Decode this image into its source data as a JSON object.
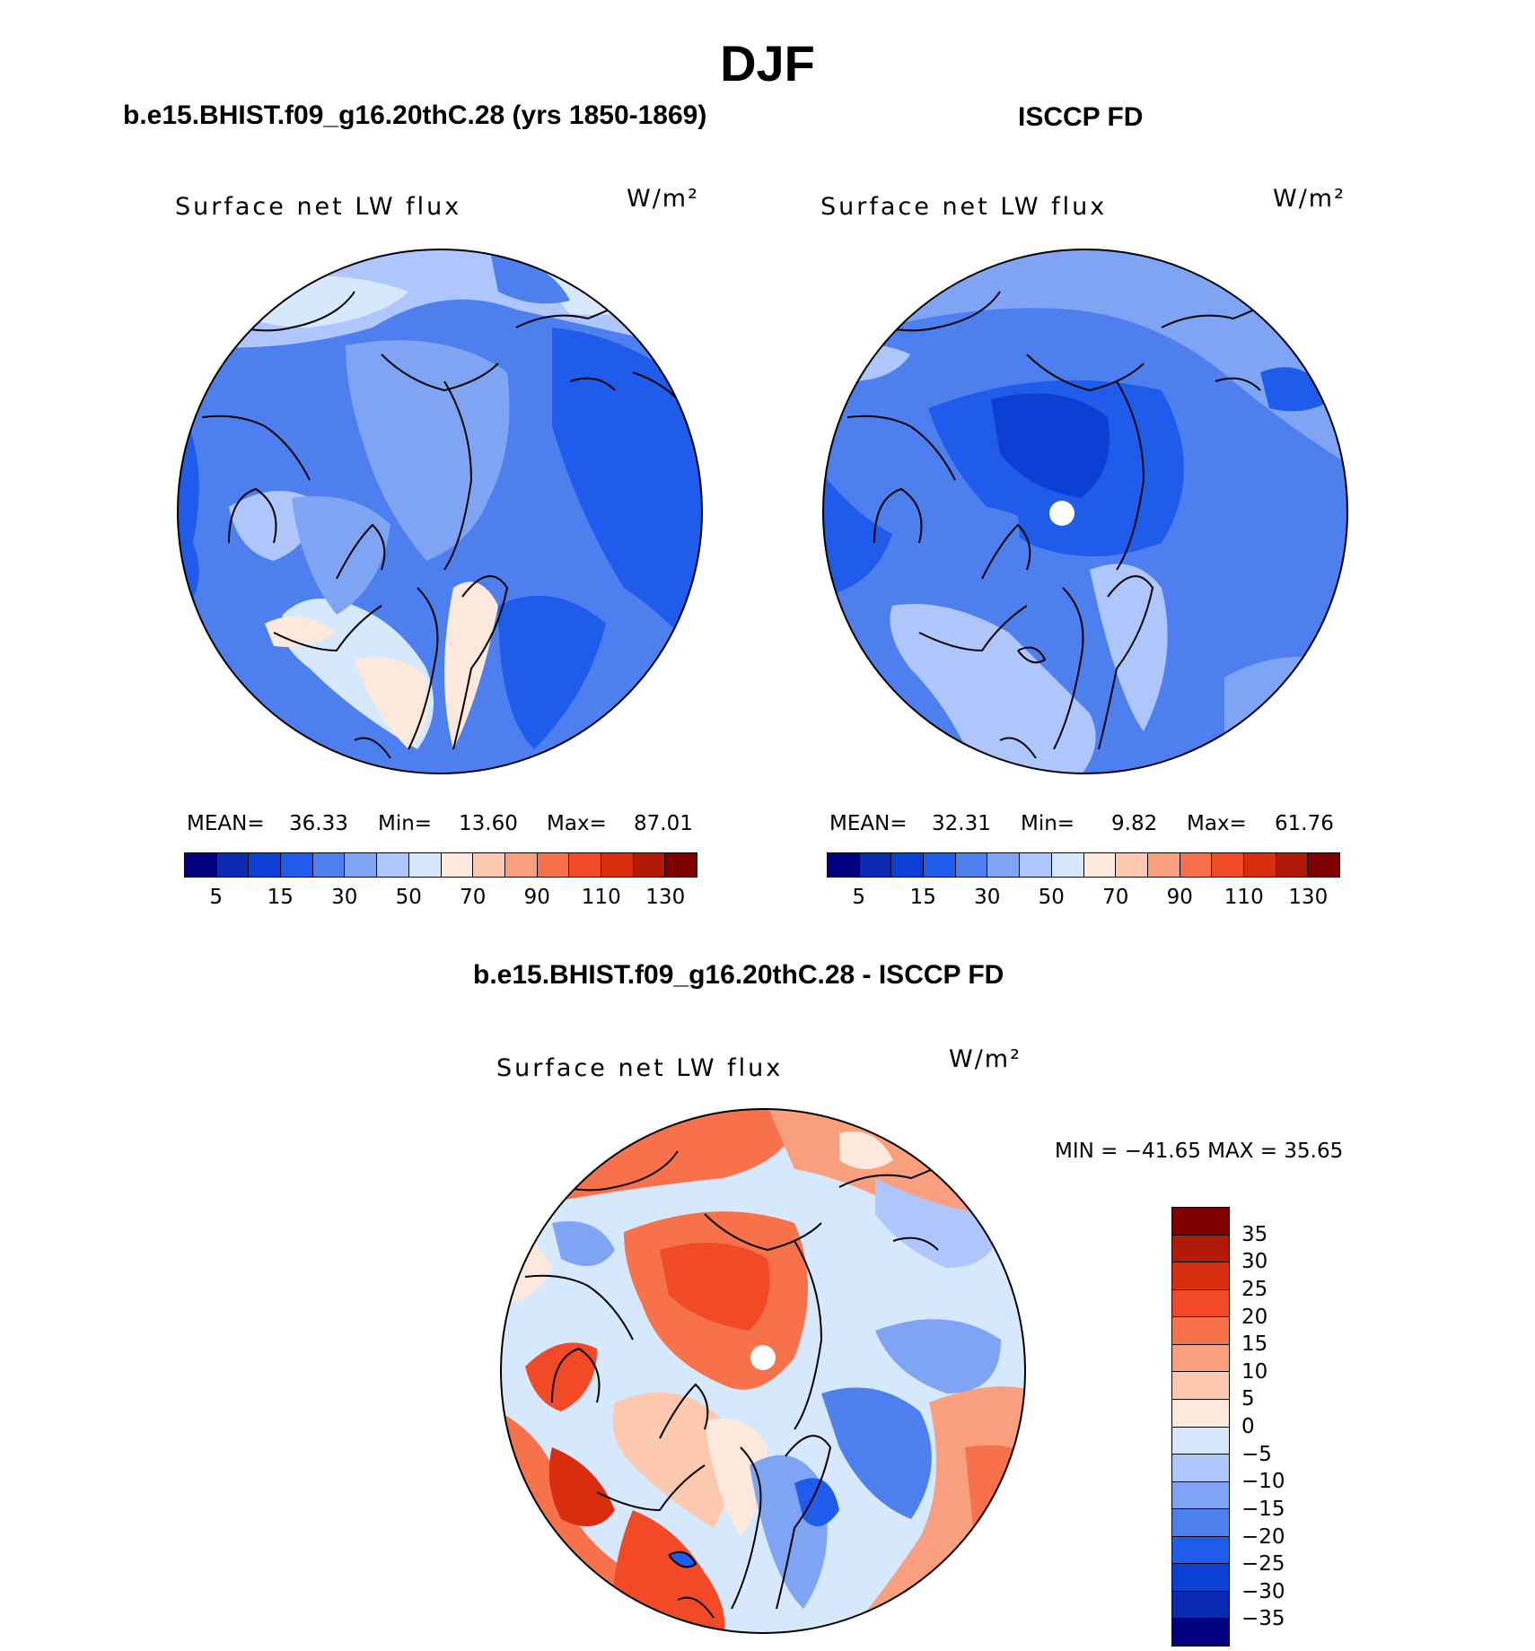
{
  "title": "DJF",
  "colors": {
    "abs_scale": [
      "#000080",
      "#0a2bb2",
      "#0c3fd4",
      "#1f5cec",
      "#4d7fef",
      "#7fa4f4",
      "#aec6fb",
      "#d6e8fc",
      "#fde8dc",
      "#fcc9ae",
      "#fa9f7e",
      "#f7714a",
      "#f24a26",
      "#d92d10",
      "#b21a08",
      "#800000"
    ],
    "diff_scale": [
      "#000080",
      "#0a2bb2",
      "#0c3fd4",
      "#1f5cec",
      "#4d7fef",
      "#7fa4f4",
      "#aec6fb",
      "#d6e8fc",
      "#fde8dc",
      "#fcc9ae",
      "#fa9f7e",
      "#f7714a",
      "#f24a26",
      "#d92d10",
      "#b21a08",
      "#800000"
    ]
  },
  "panels": {
    "model": {
      "title": "b.e15.BHIST.f09_g16.20thC.28 (yrs 1850-1869)",
      "variable": "Surface net LW flux",
      "units": "W/m²",
      "mean_label": "MEAN=",
      "mean": "36.33",
      "min_label": "Min=",
      "min": "13.60",
      "max_label": "Max=",
      "max": "87.01",
      "colorbar_labels": [
        "5",
        "15",
        "30",
        "50",
        "70",
        "90",
        "110",
        "130"
      ]
    },
    "obs": {
      "title": "ISCCP FD",
      "variable": "Surface net LW flux",
      "units": "W/m²",
      "mean_label": "MEAN=",
      "mean": "32.31",
      "min_label": "Min=",
      "min": "9.82",
      "max_label": "Max=",
      "max": "61.76",
      "colorbar_labels": [
        "5",
        "15",
        "30",
        "50",
        "70",
        "90",
        "110",
        "130"
      ]
    },
    "diff": {
      "title": "b.e15.BHIST.f09_g16.20thC.28 - ISCCP FD",
      "variable": "Surface net LW flux",
      "units": "W/m²",
      "minmax_text": "MIN = −41.65 MAX =   35.65",
      "colorbar_labels": [
        "35",
        "30",
        "25",
        "20",
        "15",
        "10",
        "5",
        "0",
        "−5",
        "−10",
        "−15",
        "−20",
        "−25",
        "−30",
        "−35"
      ]
    }
  }
}
